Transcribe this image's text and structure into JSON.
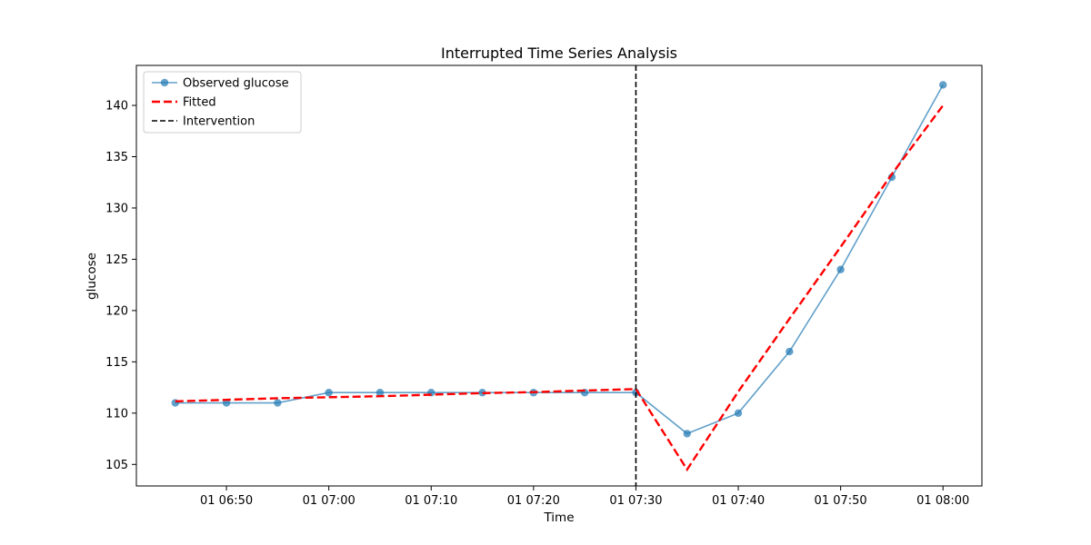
{
  "chart_data": {
    "type": "line",
    "title": "Interrupted Time Series Analysis",
    "xlabel": "Time",
    "ylabel": "glucose",
    "x": [
      "06:45",
      "06:50",
      "06:55",
      "07:00",
      "07:05",
      "07:10",
      "07:15",
      "07:20",
      "07:25",
      "07:30",
      "07:35",
      "07:40",
      "07:45",
      "07:50",
      "07:55",
      "08:00"
    ],
    "x_minutes": [
      405,
      410,
      415,
      420,
      425,
      430,
      435,
      440,
      445,
      450,
      455,
      460,
      465,
      470,
      475,
      480
    ],
    "xlim_minutes": [
      401.2,
      483.8
    ],
    "ylim": [
      102.9,
      143.9
    ],
    "x_ticks": [
      {
        "label": "01 06:50",
        "minute": 410
      },
      {
        "label": "01 07:00",
        "minute": 420
      },
      {
        "label": "01 07:10",
        "minute": 430
      },
      {
        "label": "01 07:20",
        "minute": 440
      },
      {
        "label": "01 07:30",
        "minute": 450
      },
      {
        "label": "01 07:40",
        "minute": 460
      },
      {
        "label": "01 07:50",
        "minute": 470
      },
      {
        "label": "01 08:00",
        "minute": 480
      }
    ],
    "y_ticks": [
      105,
      110,
      115,
      120,
      125,
      130,
      135,
      140
    ],
    "series": [
      {
        "name": "Observed glucose",
        "style": "solid-with-markers",
        "color": "#1f77b4",
        "values": [
          111,
          111,
          111,
          112,
          112,
          112,
          112,
          112,
          112,
          112,
          108,
          110,
          116,
          124,
          133,
          142
        ]
      },
      {
        "name": "Fitted",
        "style": "dashed",
        "color": "#ff0000",
        "values": [
          111.15,
          111.3,
          111.45,
          111.55,
          111.65,
          111.8,
          111.95,
          112.05,
          112.2,
          112.35,
          104.5,
          112.1,
          119.2,
          126.2,
          133.3,
          140.0
        ]
      }
    ],
    "intervention": {
      "name": "Intervention",
      "minute": 450,
      "color": "#000000",
      "style": "dashed"
    },
    "legend_position": "top-left",
    "grid": false
  }
}
